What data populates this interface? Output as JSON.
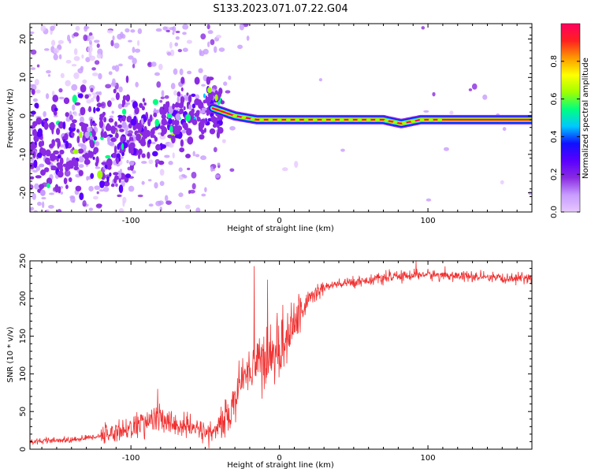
{
  "figure": {
    "title": "S133.2023.071.07.22.G04"
  },
  "colors": {
    "snr_line": "#f03030",
    "axis": "#000000",
    "colorbar_stops": [
      "#e6c8ff",
      "#c89bff",
      "#8a2be2",
      "#5a00ff",
      "#1010ff",
      "#00c8ff",
      "#00ff80",
      "#a0ff00",
      "#ffff00",
      "#ff9900",
      "#ff2020",
      "#ff0060"
    ]
  },
  "chart_data": [
    {
      "type": "heatmap",
      "name": "spectrogram",
      "xlabel": "Height of straight line (km)",
      "ylabel": "Frequency (Hz)",
      "xlim": [
        -168,
        170
      ],
      "ylim": [
        -25,
        24
      ],
      "xticks": [
        -100,
        0,
        100
      ],
      "yticks": [
        -20,
        -10,
        0,
        10,
        20
      ],
      "colorbar": {
        "label": "Normalized spectral amplitude",
        "range": [
          0,
          1
        ],
        "ticks": [
          0.0,
          0.2,
          0.4,
          0.6,
          0.8
        ]
      },
      "ridge": [
        {
          "x": -140,
          "y": -8
        },
        {
          "x": -120,
          "y": -6
        },
        {
          "x": -100,
          "y": -4
        },
        {
          "x": -80,
          "y": -3
        },
        {
          "x": -60,
          "y": 0
        },
        {
          "x": -45,
          "y": 2
        },
        {
          "x": -30,
          "y": 0
        },
        {
          "x": -15,
          "y": -1
        },
        {
          "x": 0,
          "y": -1
        },
        {
          "x": 25,
          "y": -1
        },
        {
          "x": 50,
          "y": -1
        },
        {
          "x": 70,
          "y": -1
        },
        {
          "x": 82,
          "y": -2
        },
        {
          "x": 95,
          "y": -1
        },
        {
          "x": 110,
          "y": -1
        },
        {
          "x": 140,
          "y": -1
        },
        {
          "x": 170,
          "y": -1
        }
      ]
    },
    {
      "type": "line",
      "name": "snr",
      "xlabel": "Height of straight line (km)",
      "ylabel": "SNR (10 * v/v)",
      "xlim": [
        -168,
        170
      ],
      "ylim": [
        0,
        250
      ],
      "xticks": [
        -100,
        0,
        100
      ],
      "yticks": [
        0,
        50,
        100,
        150,
        200,
        250
      ],
      "trend": [
        {
          "x": -168,
          "y": 10
        },
        {
          "x": -140,
          "y": 12
        },
        {
          "x": -120,
          "y": 18
        },
        {
          "x": -100,
          "y": 28
        },
        {
          "x": -85,
          "y": 40
        },
        {
          "x": -75,
          "y": 35
        },
        {
          "x": -60,
          "y": 28
        },
        {
          "x": -45,
          "y": 22
        },
        {
          "x": -35,
          "y": 40
        },
        {
          "x": -28,
          "y": 80
        },
        {
          "x": -20,
          "y": 110
        },
        {
          "x": -10,
          "y": 120
        },
        {
          "x": 0,
          "y": 130
        },
        {
          "x": 10,
          "y": 165
        },
        {
          "x": 20,
          "y": 200
        },
        {
          "x": 30,
          "y": 215
        },
        {
          "x": 50,
          "y": 222
        },
        {
          "x": 75,
          "y": 228
        },
        {
          "x": 95,
          "y": 232
        },
        {
          "x": 120,
          "y": 230
        },
        {
          "x": 150,
          "y": 226
        },
        {
          "x": 170,
          "y": 228
        }
      ],
      "peaks": [
        {
          "x": -82,
          "y": 80
        },
        {
          "x": -17,
          "y": 243
        },
        {
          "x": -8,
          "y": 225
        },
        {
          "x": 92,
          "y": 250
        }
      ]
    }
  ]
}
